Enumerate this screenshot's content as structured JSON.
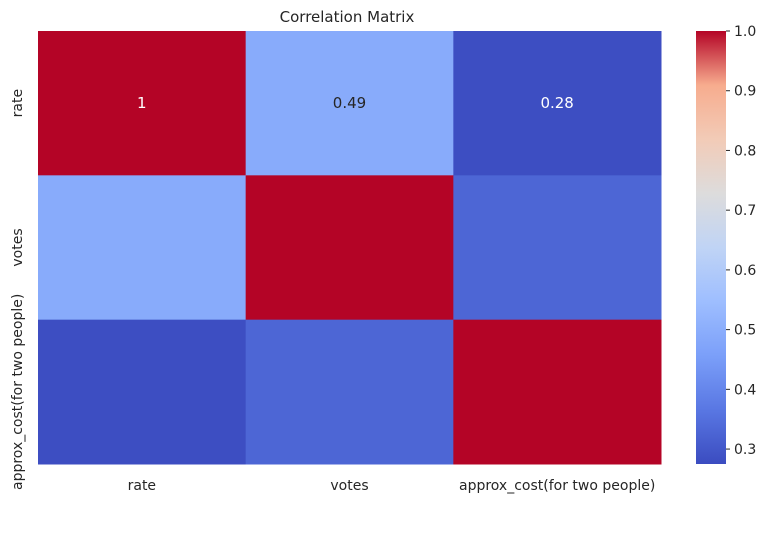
{
  "chart_data": {
    "type": "heatmap",
    "title": "Correlation Matrix",
    "x_categories": [
      "rate",
      "votes",
      "approx_cost(for two people)"
    ],
    "y_categories": [
      "rate",
      "votes",
      "approx_cost(for two people)"
    ],
    "values": [
      [
        1.0,
        0.49,
        0.28
      ],
      [
        0.49,
        1.0,
        0.33
      ],
      [
        0.28,
        0.33,
        1.0
      ]
    ],
    "annotations": [
      [
        "1",
        "0.49",
        "0.28"
      ],
      [
        "",
        "",
        ""
      ],
      [
        "",
        "",
        ""
      ]
    ],
    "colormap": "coolwarm",
    "colorbar": {
      "vmin": 0.275,
      "vmax": 1.0,
      "ticks": [
        "0.3",
        "0.4",
        "0.5",
        "0.6",
        "0.7",
        "0.8",
        "0.9",
        "1.0"
      ]
    },
    "colors": {
      "low": "#3b4cc0",
      "mid": "#dddddd",
      "high": "#b40426",
      "cell_light_text": "#ffffff",
      "cell_dark_text": "#262626"
    }
  }
}
